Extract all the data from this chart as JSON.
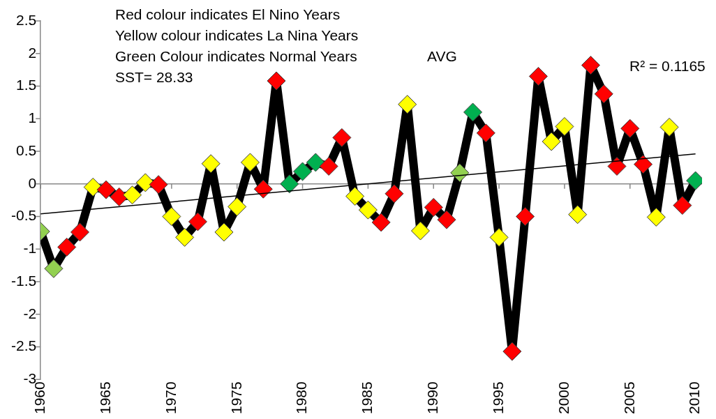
{
  "chart_data": {
    "type": "line",
    "x": [
      1960,
      1961,
      1962,
      1963,
      1964,
      1965,
      1966,
      1967,
      1968,
      1969,
      1970,
      1971,
      1972,
      1973,
      1974,
      1975,
      1976,
      1977,
      1978,
      1979,
      1980,
      1981,
      1982,
      1983,
      1984,
      1985,
      1986,
      1987,
      1988,
      1989,
      1990,
      1991,
      1992,
      1993,
      1994,
      1995,
      1996,
      1997,
      1998,
      1999,
      2000,
      2001,
      2002,
      2003,
      2004,
      2005,
      2006,
      2007,
      2008,
      2009,
      2010
    ],
    "series": [
      {
        "color": "#000000",
        "marker": "diamond",
        "values": [
          -0.73,
          -1.3,
          -0.97,
          -0.74,
          -0.05,
          -0.09,
          -0.2,
          -0.17,
          0.02,
          -0.01,
          -0.5,
          -0.82,
          -0.58,
          0.31,
          -0.74,
          -0.35,
          0.33,
          -0.08,
          1.58,
          0.0,
          0.19,
          0.33,
          0.27,
          0.71,
          -0.19,
          -0.4,
          -0.59,
          -0.15,
          1.22,
          -0.72,
          -0.36,
          -0.55,
          0.17,
          1.1,
          0.78,
          -0.82,
          -2.57,
          -0.5,
          1.65,
          0.65,
          0.88,
          -0.47,
          1.82,
          1.38,
          0.27,
          0.85,
          0.3,
          -0.51,
          0.87,
          -0.33,
          0.05
        ],
        "colors": [
          "#92d050",
          "#92d050",
          "#ff0000",
          "#ff0000",
          "#ffff00",
          "#ff0000",
          "#ff0000",
          "#ffff00",
          "#ffff00",
          "#ff0000",
          "#ffff00",
          "#ffff00",
          "#ff0000",
          "#ffff00",
          "#ffff00",
          "#ffff00",
          "#ffff00",
          "#ff0000",
          "#ff0000",
          "#00b050",
          "#00b050",
          "#00b050",
          "#ff0000",
          "#ff0000",
          "#ffff00",
          "#ffff00",
          "#ff0000",
          "#ff0000",
          "#ffff00",
          "#ffff00",
          "#ff0000",
          "#ff0000",
          "#92d050",
          "#00b050",
          "#ff0000",
          "#ffff00",
          "#ff0000",
          "#ff0000",
          "#ff0000",
          "#ffff00",
          "#ffff00",
          "#ffff00",
          "#ff0000",
          "#ff0000",
          "#ff0000",
          "#ff0000",
          "#ff0000",
          "#ffff00",
          "#ffff00",
          "#ff0000",
          "#00b050"
        ]
      },
      {
        "type": "line",
        "color": "#000000",
        "marker": "none",
        "x": [
          1960,
          2010
        ],
        "values": [
          -0.46,
          0.46
        ]
      }
    ],
    "xlim": [
      1960,
      2010.5
    ],
    "xticks": [
      1960,
      1965,
      1970,
      1975,
      1980,
      1985,
      1990,
      1995,
      2000,
      2005,
      2010
    ],
    "ylim": [
      -3,
      2.5
    ],
    "yticks": [
      -3,
      -2.5,
      -2,
      -1.5,
      -1,
      -0.5,
      0,
      0.5,
      1,
      1.5,
      2,
      2.5
    ],
    "ref_lines": [
      {
        "axis": "y",
        "value": 0,
        "color": "#888888"
      }
    ],
    "grid": false,
    "legend": false,
    "line_style": "solid",
    "annotations": [
      "Red colour indicates El Nino Years",
      "Yellow colour indicates La Nina Years",
      "Green Colour indicates Normal Years",
      "SST= 28.33",
      "AVG",
      "R² = 0.1165"
    ]
  }
}
